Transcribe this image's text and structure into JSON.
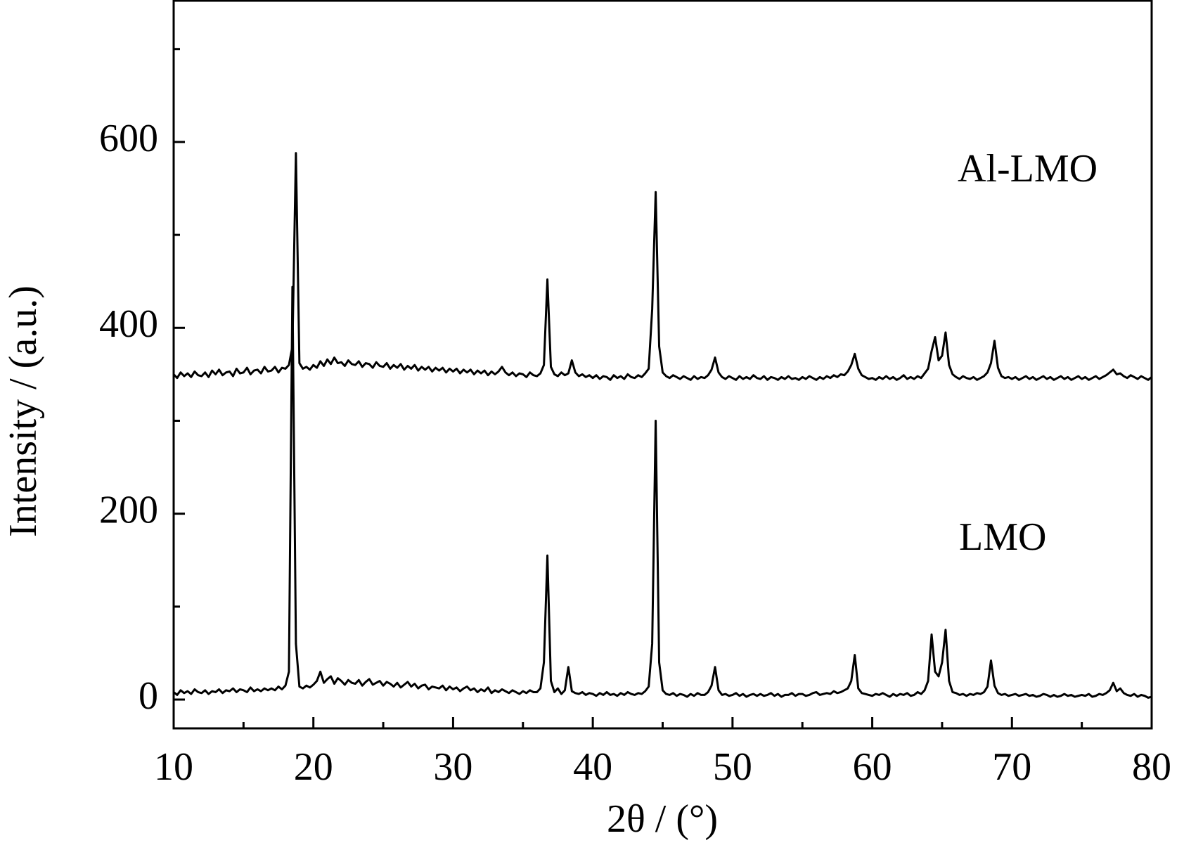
{
  "chart_data": {
    "type": "line",
    "xlabel": "2θ / (°)",
    "ylabel": "Intensity / (a.u.)",
    "annotations": [
      "Al-LMO",
      "LMO"
    ],
    "xlim": [
      10,
      80
    ],
    "xticks": [
      10,
      20,
      30,
      40,
      50,
      60,
      70,
      80
    ],
    "xminorticks": [
      15,
      25,
      35,
      45,
      55,
      65,
      75
    ],
    "ylim": [
      -31,
      752
    ],
    "yticks": [
      0,
      200,
      400,
      600
    ],
    "yminorticks": [
      100,
      300,
      500,
      700
    ],
    "x": [
      10,
      10.25,
      10.5,
      10.75,
      11,
      11.25,
      11.5,
      11.75,
      12,
      12.25,
      12.5,
      12.75,
      13,
      13.25,
      13.5,
      13.75,
      14,
      14.25,
      14.5,
      14.75,
      15,
      15.25,
      15.5,
      15.75,
      16,
      16.25,
      16.5,
      16.75,
      17,
      17.25,
      17.5,
      17.75,
      18,
      18.25,
      18.5,
      18.75,
      19,
      19.25,
      19.5,
      19.75,
      20,
      20.25,
      20.5,
      20.75,
      21,
      21.25,
      21.5,
      21.75,
      22,
      22.25,
      22.5,
      22.75,
      23,
      23.25,
      23.5,
      23.75,
      24,
      24.25,
      24.5,
      24.75,
      25,
      25.25,
      25.5,
      25.75,
      26,
      26.25,
      26.5,
      26.75,
      27,
      27.25,
      27.5,
      27.75,
      28,
      28.25,
      28.5,
      28.75,
      29,
      29.25,
      29.5,
      29.75,
      30,
      30.25,
      30.5,
      30.75,
      31,
      31.25,
      31.5,
      31.75,
      32,
      32.25,
      32.5,
      32.75,
      33,
      33.25,
      33.5,
      33.75,
      34,
      34.25,
      34.5,
      34.75,
      35,
      35.25,
      35.5,
      35.75,
      36,
      36.25,
      36.5,
      36.75,
      37,
      37.25,
      37.5,
      37.75,
      38,
      38.25,
      38.5,
      38.75,
      39,
      39.25,
      39.5,
      39.75,
      40,
      40.25,
      40.5,
      40.75,
      41,
      41.25,
      41.5,
      41.75,
      42,
      42.25,
      42.5,
      42.75,
      43,
      43.25,
      43.5,
      43.75,
      44,
      44.25,
      44.5,
      44.75,
      45,
      45.25,
      45.5,
      45.75,
      46,
      46.25,
      46.5,
      46.75,
      47,
      47.25,
      47.5,
      47.75,
      48,
      48.25,
      48.5,
      48.75,
      49,
      49.25,
      49.5,
      49.75,
      50,
      50.25,
      50.5,
      50.75,
      51,
      51.25,
      51.5,
      51.75,
      52,
      52.25,
      52.5,
      52.75,
      53,
      53.25,
      53.5,
      53.75,
      54,
      54.25,
      54.5,
      54.75,
      55,
      55.25,
      55.5,
      55.75,
      56,
      56.25,
      56.5,
      56.75,
      57,
      57.25,
      57.5,
      57.75,
      58,
      58.25,
      58.5,
      58.75,
      59,
      59.25,
      59.5,
      59.75,
      60,
      60.25,
      60.5,
      60.75,
      61,
      61.25,
      61.5,
      61.75,
      62,
      62.25,
      62.5,
      62.75,
      63,
      63.25,
      63.5,
      63.75,
      64,
      64.25,
      64.5,
      64.75,
      65,
      65.25,
      65.5,
      65.75,
      66,
      66.25,
      66.5,
      66.75,
      67,
      67.25,
      67.5,
      67.75,
      68,
      68.25,
      68.5,
      68.75,
      69,
      69.25,
      69.5,
      69.75,
      70,
      70.25,
      70.5,
      70.75,
      71,
      71.25,
      71.5,
      71.75,
      72,
      72.25,
      72.5,
      72.75,
      73,
      73.25,
      73.5,
      73.75,
      74,
      74.25,
      74.5,
      74.75,
      75,
      75.25,
      75.5,
      75.75,
      76,
      76.25,
      76.5,
      76.75,
      77,
      77.25,
      77.5,
      77.75,
      78,
      78.25,
      78.5,
      78.75,
      79,
      79.25,
      79.5,
      79.75,
      80
    ],
    "series": [
      {
        "color": "#000000",
        "values": [
          8,
          5,
          10,
          7,
          9,
          6,
          11,
          8,
          7,
          10,
          6,
          9,
          8,
          11,
          7,
          10,
          9,
          12,
          8,
          11,
          10,
          8,
          13,
          9,
          11,
          9,
          12,
          10,
          12,
          10,
          14,
          11,
          15,
          30,
          444,
          60,
          14,
          12,
          15,
          13,
          16,
          20,
          30,
          18,
          22,
          25,
          17,
          23,
          20,
          16,
          21,
          18,
          17,
          21,
          15,
          19,
          22,
          16,
          18,
          20,
          15,
          19,
          17,
          14,
          18,
          13,
          16,
          19,
          14,
          17,
          12,
          15,
          16,
          11,
          14,
          13,
          12,
          15,
          10,
          14,
          11,
          13,
          9,
          12,
          14,
          10,
          12,
          8,
          11,
          9,
          13,
          7,
          10,
          8,
          11,
          9,
          7,
          10,
          8,
          6,
          9,
          7,
          10,
          8,
          8,
          12,
          40,
          155,
          20,
          8,
          12,
          6,
          10,
          35,
          9,
          7,
          6,
          8,
          5,
          7,
          6,
          4,
          7,
          5,
          8,
          5,
          6,
          4,
          7,
          5,
          8,
          6,
          5,
          7,
          6,
          9,
          14,
          60,
          300,
          40,
          10,
          6,
          5,
          7,
          4,
          6,
          5,
          3,
          6,
          4,
          7,
          5,
          5,
          8,
          15,
          35,
          10,
          5,
          6,
          4,
          5,
          7,
          4,
          6,
          3,
          5,
          6,
          4,
          6,
          4,
          5,
          7,
          4,
          6,
          3,
          5,
          5,
          7,
          4,
          6,
          6,
          4,
          5,
          7,
          8,
          5,
          6,
          7,
          6,
          9,
          7,
          8,
          10,
          12,
          20,
          48,
          12,
          7,
          6,
          5,
          4,
          6,
          5,
          7,
          5,
          3,
          6,
          4,
          6,
          5,
          7,
          4,
          5,
          8,
          6,
          10,
          20,
          70,
          30,
          25,
          40,
          75,
          20,
          8,
          7,
          5,
          6,
          4,
          6,
          5,
          7,
          6,
          8,
          14,
          42,
          15,
          7,
          5,
          6,
          4,
          5,
          6,
          4,
          5,
          6,
          4,
          5,
          3,
          4,
          6,
          5,
          3,
          5,
          3,
          4,
          6,
          4,
          5,
          3,
          4,
          5,
          4,
          6,
          3,
          4,
          6,
          5,
          7,
          10,
          18,
          9,
          12,
          7,
          5,
          4,
          6,
          3,
          5,
          4,
          2,
          3
        ]
      },
      {
        "color": "#000000",
        "values": [
          350,
          346,
          352,
          348,
          351,
          347,
          353,
          349,
          348,
          352,
          347,
          354,
          350,
          355,
          349,
          352,
          353,
          348,
          356,
          351,
          352,
          357,
          350,
          354,
          355,
          351,
          358,
          353,
          354,
          358,
          352,
          357,
          356,
          360,
          380,
          588,
          362,
          356,
          358,
          355,
          360,
          357,
          364,
          359,
          366,
          361,
          368,
          362,
          363,
          359,
          365,
          361,
          360,
          364,
          358,
          362,
          361,
          357,
          363,
          359,
          358,
          362,
          356,
          360,
          357,
          361,
          355,
          359,
          356,
          360,
          354,
          358,
          355,
          358,
          353,
          357,
          354,
          357,
          352,
          356,
          353,
          356,
          351,
          355,
          352,
          355,
          350,
          354,
          351,
          354,
          349,
          353,
          350,
          353,
          358,
          352,
          349,
          352,
          348,
          351,
          350,
          347,
          352,
          349,
          348,
          351,
          360,
          452,
          358,
          350,
          348,
          352,
          349,
          351,
          365,
          352,
          348,
          350,
          347,
          349,
          346,
          349,
          345,
          348,
          347,
          344,
          349,
          346,
          348,
          345,
          350,
          347,
          346,
          349,
          347,
          351,
          356,
          420,
          546,
          380,
          352,
          348,
          346,
          349,
          347,
          345,
          348,
          346,
          344,
          348,
          345,
          347,
          346,
          349,
          355,
          368,
          352,
          347,
          345,
          348,
          346,
          344,
          348,
          345,
          347,
          345,
          349,
          346,
          345,
          348,
          344,
          347,
          346,
          344,
          347,
          345,
          348,
          345,
          346,
          344,
          347,
          345,
          348,
          346,
          344,
          347,
          345,
          348,
          346,
          349,
          347,
          350,
          349,
          353,
          360,
          372,
          356,
          349,
          347,
          345,
          346,
          344,
          347,
          345,
          348,
          345,
          347,
          344,
          346,
          349,
          345,
          347,
          345,
          348,
          346,
          351,
          356,
          375,
          390,
          365,
          370,
          395,
          360,
          350,
          347,
          345,
          348,
          346,
          345,
          347,
          344,
          346,
          348,
          352,
          362,
          386,
          357,
          348,
          346,
          347,
          345,
          347,
          344,
          346,
          348,
          345,
          347,
          344,
          346,
          348,
          345,
          347,
          344,
          346,
          348,
          345,
          347,
          344,
          346,
          348,
          345,
          347,
          344,
          346,
          348,
          345,
          347,
          349,
          352,
          355,
          350,
          351,
          348,
          346,
          349,
          347,
          345,
          348,
          346,
          344,
          347
        ]
      }
    ]
  }
}
